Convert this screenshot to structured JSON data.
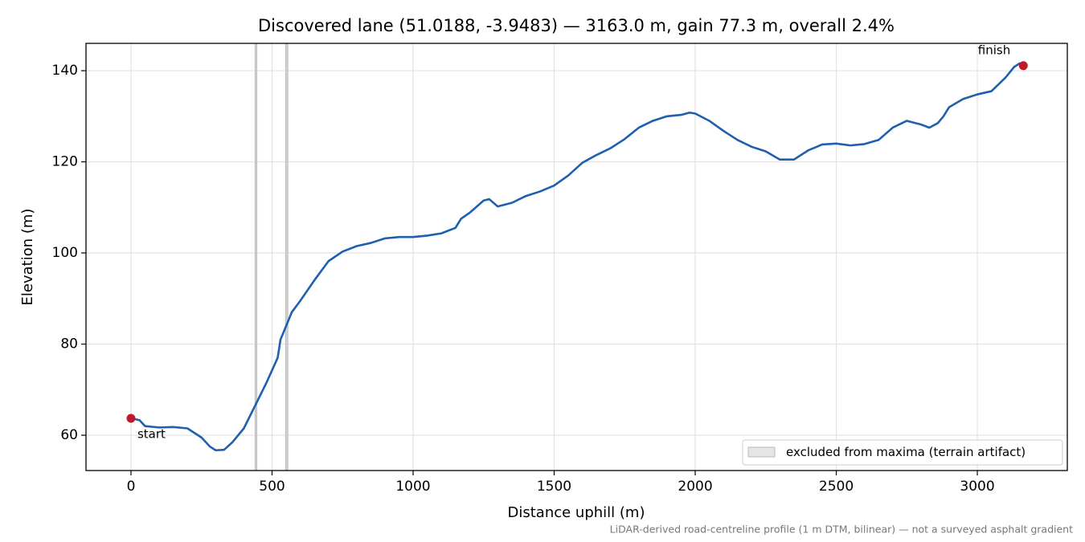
{
  "chart_data": {
    "type": "line",
    "title": "Discovered lane (51.0188, -3.9483) — 3163.0 m, gain 77.3 m, overall 2.4%",
    "x_label": "Distance uphill (m)",
    "y_label": "Elevation (m)",
    "footnote": "LiDAR-derived road-centreline profile (1 m DTM, bilinear) — not a surveyed asphalt gradient",
    "x": [
      0,
      30,
      50,
      100,
      150,
      200,
      250,
      280,
      300,
      330,
      360,
      400,
      440,
      480,
      520,
      530,
      550,
      570,
      600,
      650,
      700,
      750,
      800,
      850,
      900,
      950,
      1000,
      1050,
      1100,
      1150,
      1170,
      1200,
      1250,
      1270,
      1300,
      1350,
      1400,
      1450,
      1500,
      1550,
      1600,
      1650,
      1700,
      1750,
      1800,
      1850,
      1900,
      1950,
      1980,
      2000,
      2050,
      2100,
      2150,
      2200,
      2250,
      2300,
      2350,
      2400,
      2450,
      2500,
      2550,
      2600,
      2650,
      2700,
      2750,
      2800,
      2830,
      2860,
      2880,
      2900,
      2950,
      3000,
      3050,
      3100,
      3130,
      3150,
      3163
    ],
    "series": [
      {
        "color": "#1f5fb0",
        "values": [
          63.7,
          63.3,
          62,
          61.7,
          61.8,
          61.5,
          59.5,
          57.5,
          56.7,
          56.8,
          58.5,
          61.5,
          66.5,
          71.5,
          77,
          81,
          84,
          87,
          89.5,
          94,
          98.2,
          100.3,
          101.5,
          102.2,
          103.2,
          103.5,
          103.5,
          103.8,
          104.3,
          105.5,
          107.5,
          108.8,
          111.5,
          111.8,
          110.2,
          111,
          112.5,
          113.5,
          114.8,
          117,
          119.8,
          121.5,
          123,
          125,
          127.5,
          129,
          130,
          130.3,
          130.8,
          130.6,
          129,
          126.8,
          124.8,
          123.3,
          122.3,
          120.5,
          120.5,
          122.5,
          123.8,
          124,
          123.6,
          123.9,
          124.8,
          127.5,
          129,
          128.2,
          127.5,
          128.5,
          130,
          132,
          133.8,
          134.8,
          135.5,
          138.5,
          140.8,
          141.6,
          141.1
        ]
      }
    ],
    "endpoint_color": "#c0192a",
    "start_label": "start",
    "finish_label": "finish",
    "excluded_regions": [
      [
        440,
        446
      ],
      [
        548,
        556
      ]
    ],
    "excluded_label": "excluded from maxima (terrain artifact)",
    "excluded_color": "#d4d4d4",
    "xlim": [
      -159.5,
      3319
    ],
    "ylim": [
      52.25,
      146
    ],
    "xticks": [
      0,
      500,
      1000,
      1500,
      2000,
      2500,
      3000
    ],
    "yticks": [
      60,
      80,
      100,
      120,
      140
    ],
    "grid": true,
    "legend_position": "lower right"
  }
}
